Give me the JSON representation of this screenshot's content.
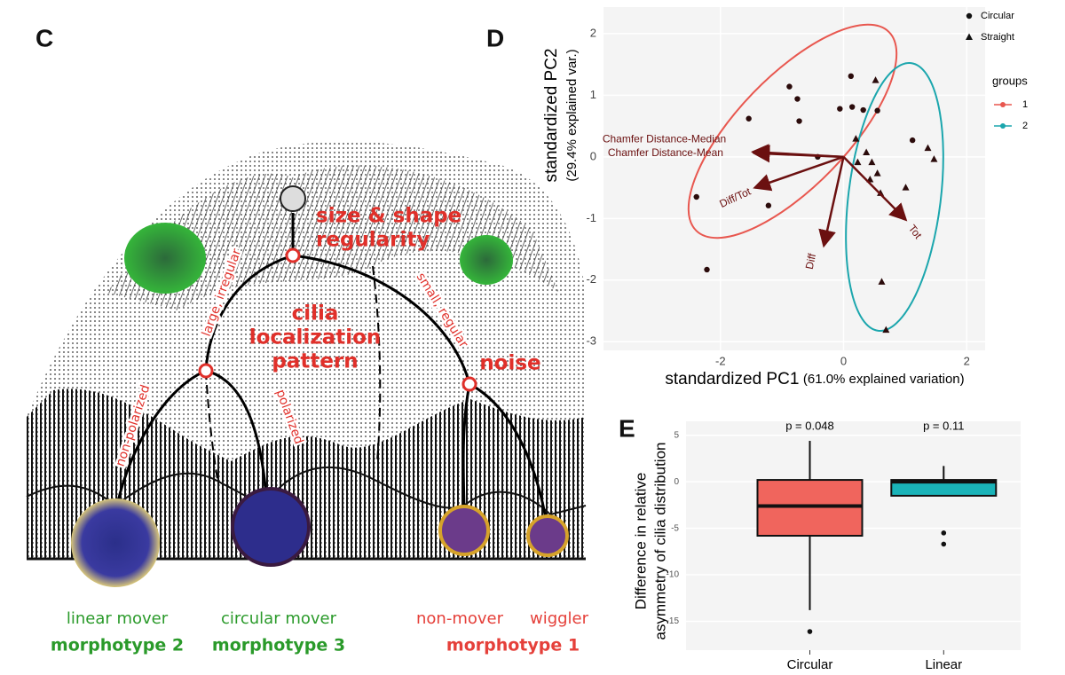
{
  "panel_labels": {
    "c": "C",
    "d": "D",
    "e": "E"
  },
  "landscape": {
    "top_node": [
      "size & shape",
      "regularity"
    ],
    "middle_node": [
      "cilia",
      "localization",
      "pattern"
    ],
    "noise": "noise",
    "branches": [
      "large, irregular",
      "small, regular",
      "non-polarized",
      "polarized"
    ],
    "outcomes": [
      {
        "behaviors": [
          "linear mover"
        ],
        "morphotype": "morphotype 2"
      },
      {
        "behaviors": [
          "circular mover"
        ],
        "morphotype": "morphotype 3"
      },
      {
        "behaviors": [
          "non-mover",
          "wiggler"
        ],
        "morphotype": "morphotype 1"
      }
    ]
  },
  "chart_data": [
    {
      "type": "biplot",
      "x_label": "standardized PC1",
      "x_label_note": "(61.0% explained variation)",
      "y_label": "standardized PC2",
      "y_label_note": "(29.4% explained var.)",
      "xlim": [
        -3.9,
        2.3
      ],
      "ylim": [
        -3.14,
        2.43
      ],
      "xticks": [
        -2,
        0,
        2
      ],
      "yticks": [
        -3,
        -2,
        -1,
        0,
        1,
        2
      ],
      "grid": true,
      "series": [
        {
          "name": "Circular",
          "shape": "circle",
          "color": "#2b0b0b",
          "x": [
            -0.88,
            -0.75,
            -1.54,
            -0.72,
            -0.06,
            0.14,
            0.32,
            0.55,
            0.12,
            -0.42,
            -2.39,
            -1.22,
            -2.22,
            1.12
          ],
          "y": [
            1.14,
            0.94,
            0.62,
            0.58,
            0.78,
            0.81,
            0.76,
            0.75,
            1.31,
            0.0,
            -0.65,
            -0.79,
            -1.83,
            0.27
          ]
        },
        {
          "name": "Straight",
          "shape": "triangle",
          "color": "#2b0b0b",
          "x": [
            0.52,
            0.2,
            0.37,
            0.23,
            0.46,
            0.55,
            0.43,
            0.6,
            1.01,
            1.37,
            1.47,
            0.62,
            0.69
          ],
          "y": [
            1.24,
            0.29,
            0.07,
            -0.09,
            -0.09,
            -0.27,
            -0.37,
            -0.59,
            -0.5,
            0.14,
            -0.04,
            -2.03,
            -2.81
          ]
        }
      ],
      "groups_title": "groups",
      "groups": [
        {
          "name": "1",
          "color": "#e8574f"
        },
        {
          "name": "2",
          "color": "#1ba6ad"
        }
      ],
      "loading_color": "#6b1010",
      "loadings": [
        {
          "name": "Chamfer Distance-Median",
          "x": -1.47,
          "y": 0.08
        },
        {
          "name": "Chamfer Distance-Mean",
          "x": -1.45,
          "y": 0.06
        },
        {
          "name": "Diff/Tot",
          "x": -1.44,
          "y": -0.5
        },
        {
          "name": "Diff",
          "x": -0.32,
          "y": -1.44
        },
        {
          "name": "Tot",
          "x": 1.01,
          "y": -1.02
        }
      ]
    },
    {
      "type": "box",
      "y_label": [
        "Difference in relative",
        "asymmetry of cilia distribution"
      ],
      "ylim": [
        -18.1,
        6.5
      ],
      "yticks": [
        5,
        0,
        -5,
        -10,
        -15
      ],
      "grid": true,
      "categories": [
        "Circular",
        "Linear"
      ],
      "annotations": [
        "p = 0.048",
        "p = 0.11"
      ],
      "boxes": [
        {
          "whisker_low": -13.8,
          "q1": -5.8,
          "median": -2.6,
          "q3": 0.2,
          "whisker_high": 4.4,
          "outliers": [
            -16.1
          ],
          "color": "#f0655d"
        },
        {
          "whisker_low": -1.5,
          "q1": -1.5,
          "median": 0.0,
          "q3": 0.2,
          "whisker_high": 1.7,
          "outliers": [
            -5.5,
            -6.7
          ],
          "color": "#1ab3b8"
        }
      ]
    }
  ]
}
